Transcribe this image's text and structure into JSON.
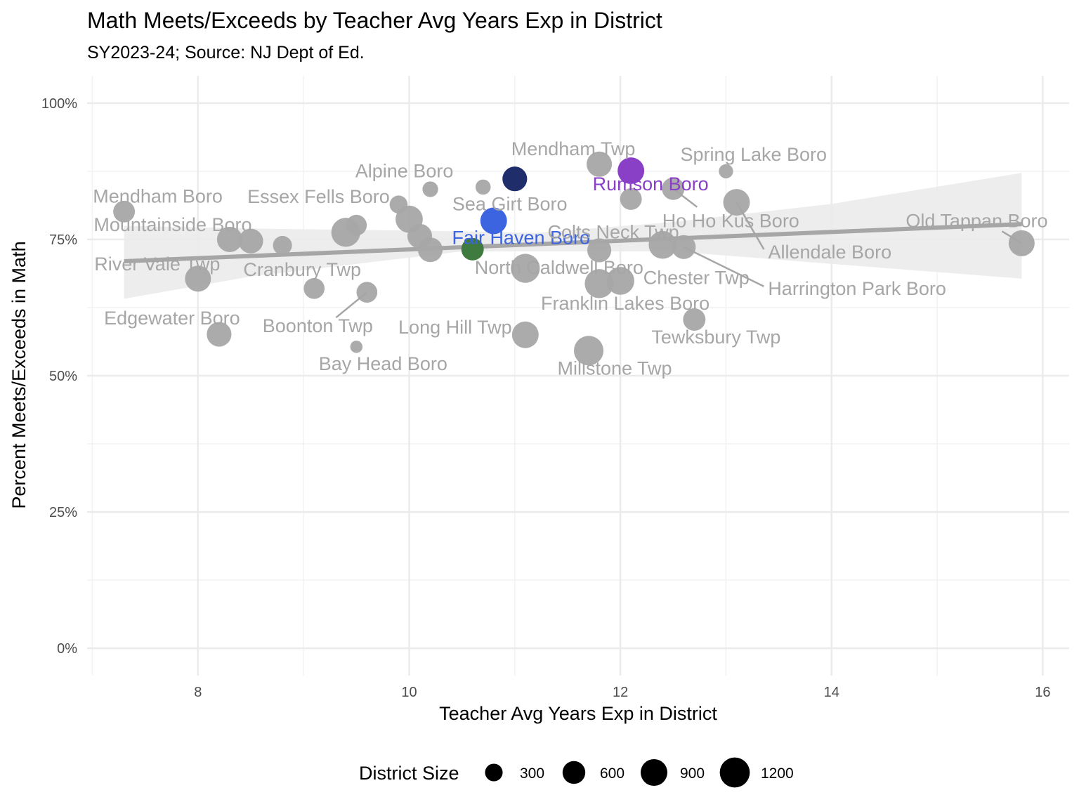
{
  "chart_data": {
    "type": "scatter",
    "title": "Math Meets/Exceeds by Teacher Avg Years Exp in District",
    "subtitle": "SY2023-24; Source: NJ Dept of Ed.",
    "xlabel": "Teacher Avg Years Exp in District",
    "ylabel": "Percent Meets/Exceeds in Math",
    "xlim": [
      6.95,
      16.25
    ],
    "ylim": [
      -0.05,
      1.05
    ],
    "x_ticks": [
      8,
      10,
      12,
      14,
      16
    ],
    "x_tick_labels": [
      "8",
      "10",
      "12",
      "14",
      "16"
    ],
    "y_ticks": [
      0,
      0.25,
      0.5,
      0.75,
      1.0
    ],
    "y_tick_labels": [
      "0%",
      "25%",
      "50%",
      "75%",
      "100%"
    ],
    "grid": true,
    "legend": {
      "title": "District Size",
      "position": "bottom",
      "sizes": [
        300,
        600,
        900,
        1200
      ],
      "labels": [
        "300",
        "600",
        "900",
        "1200"
      ]
    },
    "colors": {
      "default": "#a6a6a6",
      "label_default": "#a6a6a6",
      "rumson": "#8a3fc7",
      "fair_haven": "#3d64e0",
      "navy": "#1f2d6b",
      "green": "#3f7a3f",
      "trend": "#a6a6a6",
      "band": "#ebebeb"
    },
    "trend": {
      "x0": 7.3,
      "y0": 0.71,
      "x1": 15.8,
      "y1": 0.778
    },
    "band": {
      "upper": [
        [
          7.3,
          0.775
        ],
        [
          8.5,
          0.77
        ],
        [
          10.5,
          0.765
        ],
        [
          11.2,
          0.762
        ],
        [
          12.5,
          0.782
        ],
        [
          14.0,
          0.815
        ],
        [
          15.8,
          0.872
        ]
      ],
      "lower": [
        [
          15.8,
          0.678
        ],
        [
          14.0,
          0.705
        ],
        [
          12.5,
          0.728
        ],
        [
          11.2,
          0.728
        ],
        [
          10.5,
          0.728
        ],
        [
          8.5,
          0.682
        ],
        [
          7.3,
          0.641
        ]
      ]
    },
    "points": [
      {
        "name": "Mendham Boro",
        "x": 7.3,
        "y": 0.801,
        "size": 500,
        "color": "default",
        "label": true
      },
      {
        "name": "River Vale Twp",
        "x": 8.0,
        "y": 0.678,
        "size": 800,
        "color": "default",
        "label": true
      },
      {
        "name": "Edgewater Boro",
        "x": 8.2,
        "y": 0.576,
        "size": 700,
        "color": "default",
        "label": true
      },
      {
        "name": "Mountainside Boro",
        "x": 8.3,
        "y": 0.75,
        "size": 750,
        "color": "default",
        "label": true
      },
      {
        "name": "",
        "x": 8.5,
        "y": 0.747,
        "size": 700,
        "color": "default",
        "label": false
      },
      {
        "name": "",
        "x": 8.8,
        "y": 0.739,
        "size": 350,
        "color": "default",
        "label": false
      },
      {
        "name": "Cranbury Twp",
        "x": 9.1,
        "y": 0.66,
        "size": 450,
        "color": "default",
        "label": true
      },
      {
        "name": "",
        "x": 9.4,
        "y": 0.763,
        "size": 1050,
        "color": "default",
        "label": false
      },
      {
        "name": "",
        "x": 9.5,
        "y": 0.776,
        "size": 450,
        "color": "default",
        "label": false
      },
      {
        "name": "Bay Head Boro",
        "x": 9.5,
        "y": 0.553,
        "size": 90,
        "color": "default",
        "label": true
      },
      {
        "name": "Boonton Twp",
        "x": 9.6,
        "y": 0.653,
        "size": 450,
        "color": "default",
        "label": true
      },
      {
        "name": "Essex Fells Boro",
        "x": 9.9,
        "y": 0.814,
        "size": 300,
        "color": "default",
        "label": true
      },
      {
        "name": "",
        "x": 10.0,
        "y": 0.787,
        "size": 900,
        "color": "default",
        "label": false
      },
      {
        "name": "",
        "x": 10.1,
        "y": 0.756,
        "size": 700,
        "color": "default",
        "label": false
      },
      {
        "name": "",
        "x": 10.2,
        "y": 0.731,
        "size": 700,
        "color": "default",
        "label": false
      },
      {
        "name": "Alpine Boro",
        "x": 10.2,
        "y": 0.842,
        "size": 200,
        "color": "default",
        "label": true
      },
      {
        "name": "",
        "x": 10.6,
        "y": 0.732,
        "size": 550,
        "color": "green",
        "label": false
      },
      {
        "name": "Sea Girt Boro",
        "x": 10.7,
        "y": 0.846,
        "size": 180,
        "color": "default",
        "label": true
      },
      {
        "name": "Fair Haven Boro",
        "x": 10.8,
        "y": 0.784,
        "size": 850,
        "color": "fair_haven",
        "label": true
      },
      {
        "name": "",
        "x": 11.0,
        "y": 0.861,
        "size": 700,
        "color": "navy",
        "label": false
      },
      {
        "name": "North Caldwell Boro",
        "x": 11.1,
        "y": 0.697,
        "size": 1050,
        "color": "default",
        "label": true
      },
      {
        "name": "Long Hill Twp",
        "x": 11.1,
        "y": 0.575,
        "size": 850,
        "color": "default",
        "label": true
      },
      {
        "name": "Millstone Twp",
        "x": 11.7,
        "y": 0.546,
        "size": 1100,
        "color": "default",
        "label": true
      },
      {
        "name": "Mendham Twp",
        "x": 11.8,
        "y": 0.888,
        "size": 750,
        "color": "default",
        "label": true
      },
      {
        "name": "Colts Neck Twp",
        "x": 11.8,
        "y": 0.73,
        "size": 650,
        "color": "default",
        "label": true
      },
      {
        "name": "Franklin Lakes Boro",
        "x": 11.8,
        "y": 0.669,
        "size": 1050,
        "color": "default",
        "label": true
      },
      {
        "name": "",
        "x": 12.0,
        "y": 0.674,
        "size": 950,
        "color": "default",
        "label": false
      },
      {
        "name": "Rumson Boro",
        "x": 12.1,
        "y": 0.876,
        "size": 850,
        "color": "rumson",
        "label": true
      },
      {
        "name": "",
        "x": 12.1,
        "y": 0.824,
        "size": 500,
        "color": "default",
        "label": false
      },
      {
        "name": "Chester Twp",
        "x": 12.4,
        "y": 0.74,
        "size": 950,
        "color": "default",
        "label": true
      },
      {
        "name": "Ho Ho Kus Boro",
        "x": 12.5,
        "y": 0.843,
        "size": 550,
        "color": "default",
        "label": true
      },
      {
        "name": "Harrington Park Boro",
        "x": 12.6,
        "y": 0.736,
        "size": 650,
        "color": "default",
        "label": true
      },
      {
        "name": "Tewksbury Twp",
        "x": 12.7,
        "y": 0.603,
        "size": 550,
        "color": "default",
        "label": true
      },
      {
        "name": "Spring Lake Boro",
        "x": 13.0,
        "y": 0.875,
        "size": 150,
        "color": "default",
        "label": true
      },
      {
        "name": "Allendale Boro",
        "x": 13.1,
        "y": 0.818,
        "size": 850,
        "color": "default",
        "label": true
      },
      {
        "name": "Old Tappan Boro",
        "x": 15.8,
        "y": 0.743,
        "size": 800,
        "color": "default",
        "label": true
      }
    ]
  }
}
